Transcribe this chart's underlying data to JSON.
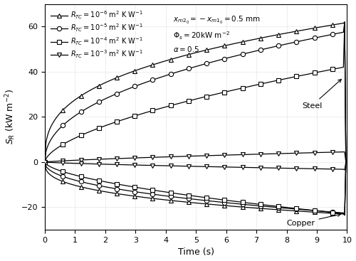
{
  "xlabel": "Time (s)",
  "ylabel": "$S_R$ (kW m$^{-2}$)",
  "xlim": [
    0,
    10
  ],
  "ylim": [
    -30,
    70
  ],
  "yticks": [
    -20,
    0,
    20,
    40,
    60
  ],
  "xticks": [
    0,
    1,
    2,
    3,
    4,
    5,
    6,
    7,
    8,
    9,
    10
  ],
  "annotation_text": "$x_{m2_0} = -x_{m1_0} = 0.5$ mm\n$\\Phi_s = 20$kW m$^{-2}$\n$\\alpha = 0.5$",
  "legend_entries": [
    "$R_{TC}= 10^{-6}$ m$^2$ K W$^{-1}$",
    "$R_{TC}= 10^{-5}$ m$^2$ K W$^{-1}$",
    "$R_{TC}= 10^{-4}$ m$^2$ K W$^{-1}$",
    "$R_{TC}= 10^{-3}$ m$^2$ K W$^{-1}$"
  ],
  "markers": [
    "^",
    "o",
    "s",
    "v"
  ],
  "grid_color": "#c0c0c0",
  "steel_label": "Steel",
  "copper_label": "Copper",
  "t_end": 9.88,
  "steel_asymptote": [
    61.5,
    57.5,
    42.0,
    4.5
  ],
  "copper_asymptote": [
    -23.0,
    -22.5,
    -22.8,
    -3.2
  ],
  "steel_shape": [
    0.35,
    0.45,
    0.6,
    0.75
  ],
  "copper_shape": [
    0.35,
    0.45,
    0.6,
    0.75
  ],
  "steel_spike_peak": [
    62.0,
    62.0,
    62.0,
    4.5
  ],
  "copper_spike_peak": [
    -23.5,
    -23.5,
    -23.5,
    -3.5
  ],
  "marker_interval": 18,
  "marker_size": 4.5
}
